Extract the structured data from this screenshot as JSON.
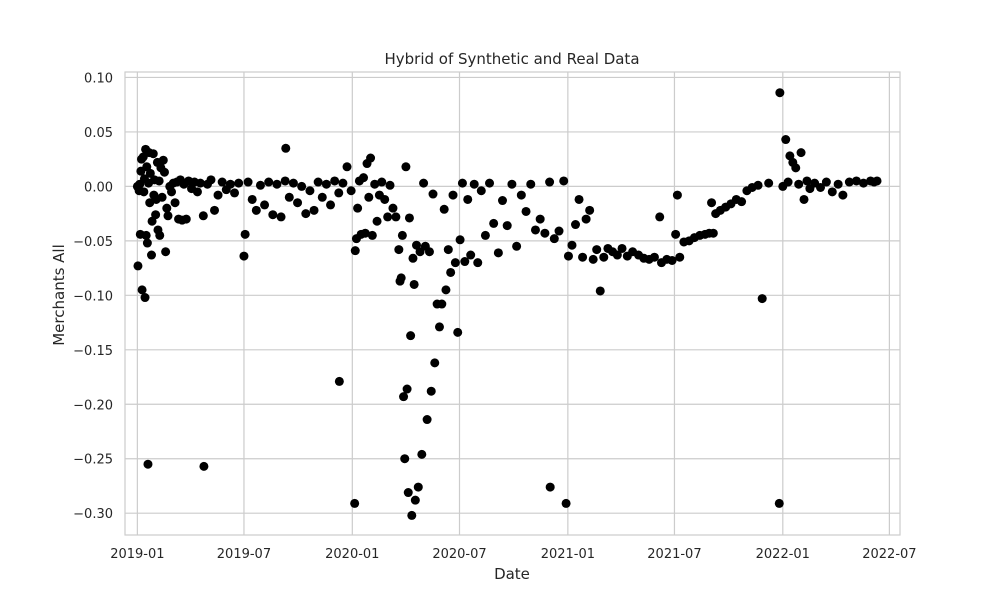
{
  "chart_data": {
    "type": "scatter",
    "title": "Hybrid of Synthetic and Real Data",
    "xlabel": "Date",
    "ylabel": "Merchants All",
    "x_ticks": [
      "2019-01",
      "2019-07",
      "2020-01",
      "2020-07",
      "2021-01",
      "2021-07",
      "2022-01",
      "2022-07"
    ],
    "y_ticks": [
      "0.10",
      "0.05",
      "0.00",
      "−0.05",
      "−0.10",
      "−0.15",
      "−0.20",
      "−0.25",
      "−0.30"
    ],
    "xlim": [
      "2018-12-11",
      "2022-07-19"
    ],
    "ylim": [
      -0.32,
      0.105
    ],
    "grid": true,
    "marker_color": "#000000",
    "grid_color": "#cccccc",
    "series": [
      {
        "points": [
          [
            "2019-01-01",
            0.0
          ],
          [
            "2019-01-02",
            -0.073
          ],
          [
            "2019-01-04",
            -0.004
          ],
          [
            "2019-01-05",
            0.002
          ],
          [
            "2019-01-06",
            -0.044
          ],
          [
            "2019-01-07",
            0.014
          ],
          [
            "2019-01-08",
            0.025
          ],
          [
            "2019-01-09",
            -0.095
          ],
          [
            "2019-01-11",
            0.027
          ],
          [
            "2019-01-12",
            -0.005
          ],
          [
            "2019-01-13",
            0.007
          ],
          [
            "2019-01-14",
            -0.102
          ],
          [
            "2019-01-15",
            0.034
          ],
          [
            "2019-01-16",
            -0.045
          ],
          [
            "2019-01-17",
            0.018
          ],
          [
            "2019-01-18",
            -0.052
          ],
          [
            "2019-01-19",
            -0.255
          ],
          [
            "2019-01-20",
            0.003
          ],
          [
            "2019-01-21",
            0.031
          ],
          [
            "2019-01-22",
            -0.015
          ],
          [
            "2019-01-23",
            0.012
          ],
          [
            "2019-01-25",
            -0.063
          ],
          [
            "2019-01-26",
            -0.032
          ],
          [
            "2019-01-28",
            0.03
          ],
          [
            "2019-01-29",
            -0.008
          ],
          [
            "2019-01-30",
            0.006
          ],
          [
            "2019-02-01",
            -0.026
          ],
          [
            "2019-02-02",
            -0.012
          ],
          [
            "2019-02-04",
            0.022
          ],
          [
            "2019-02-05",
            -0.04
          ],
          [
            "2019-02-07",
            0.005
          ],
          [
            "2019-02-08",
            -0.045
          ],
          [
            "2019-02-10",
            0.017
          ],
          [
            "2019-02-12",
            -0.01
          ],
          [
            "2019-02-14",
            0.024
          ],
          [
            "2019-02-16",
            0.013
          ],
          [
            "2019-02-18",
            -0.06
          ],
          [
            "2019-02-20",
            -0.02
          ],
          [
            "2019-02-22",
            -0.027
          ],
          [
            "2019-02-25",
            0.0
          ],
          [
            "2019-02-28",
            -0.005
          ],
          [
            "2019-03-03",
            0.003
          ],
          [
            "2019-03-06",
            -0.015
          ],
          [
            "2019-03-09",
            0.004
          ],
          [
            "2019-03-12",
            -0.03
          ],
          [
            "2019-03-15",
            0.006
          ],
          [
            "2019-03-18",
            -0.031
          ],
          [
            "2019-03-21",
            0.002
          ],
          [
            "2019-03-25",
            -0.03
          ],
          [
            "2019-03-29",
            0.005
          ],
          [
            "2019-04-03",
            -0.002
          ],
          [
            "2019-04-08",
            0.004
          ],
          [
            "2019-04-13",
            -0.005
          ],
          [
            "2019-04-18",
            0.003
          ],
          [
            "2019-04-23",
            -0.027
          ],
          [
            "2019-04-24",
            -0.257
          ],
          [
            "2019-04-30",
            0.002
          ],
          [
            "2019-05-06",
            0.006
          ],
          [
            "2019-05-12",
            -0.022
          ],
          [
            "2019-05-18",
            -0.008
          ],
          [
            "2019-05-25",
            0.004
          ],
          [
            "2019-06-01",
            -0.003
          ],
          [
            "2019-06-08",
            0.002
          ],
          [
            "2019-06-15",
            -0.006
          ],
          [
            "2019-06-22",
            0.003
          ],
          [
            "2019-07-01",
            -0.064
          ],
          [
            "2019-07-03",
            -0.044
          ],
          [
            "2019-07-08",
            0.004
          ],
          [
            "2019-07-15",
            -0.012
          ],
          [
            "2019-07-22",
            -0.022
          ],
          [
            "2019-07-29",
            0.001
          ],
          [
            "2019-08-05",
            -0.017
          ],
          [
            "2019-08-12",
            0.004
          ],
          [
            "2019-08-19",
            -0.026
          ],
          [
            "2019-08-26",
            0.002
          ],
          [
            "2019-09-02",
            -0.028
          ],
          [
            "2019-09-09",
            0.005
          ],
          [
            "2019-09-10",
            0.035
          ],
          [
            "2019-09-16",
            -0.01
          ],
          [
            "2019-09-23",
            0.003
          ],
          [
            "2019-09-30",
            -0.015
          ],
          [
            "2019-10-07",
            0.0
          ],
          [
            "2019-10-14",
            -0.025
          ],
          [
            "2019-10-21",
            -0.004
          ],
          [
            "2019-10-28",
            -0.022
          ],
          [
            "2019-11-04",
            0.004
          ],
          [
            "2019-11-11",
            -0.01
          ],
          [
            "2019-11-18",
            0.002
          ],
          [
            "2019-11-25",
            -0.017
          ],
          [
            "2019-12-02",
            0.005
          ],
          [
            "2019-12-09",
            -0.006
          ],
          [
            "2019-12-10",
            -0.179
          ],
          [
            "2019-12-16",
            0.003
          ],
          [
            "2019-12-23",
            0.018
          ],
          [
            "2019-12-30",
            -0.004
          ],
          [
            "2020-01-05",
            -0.291
          ],
          [
            "2020-01-06",
            -0.059
          ],
          [
            "2020-01-08",
            -0.048
          ],
          [
            "2020-01-10",
            -0.02
          ],
          [
            "2020-01-13",
            0.005
          ],
          [
            "2020-01-16",
            -0.044
          ],
          [
            "2020-01-20",
            0.008
          ],
          [
            "2020-01-23",
            -0.043
          ],
          [
            "2020-01-26",
            0.021
          ],
          [
            "2020-01-29",
            -0.01
          ],
          [
            "2020-02-01",
            0.026
          ],
          [
            "2020-02-04",
            -0.045
          ],
          [
            "2020-02-08",
            0.002
          ],
          [
            "2020-02-12",
            -0.032
          ],
          [
            "2020-02-16",
            -0.008
          ],
          [
            "2020-02-20",
            0.004
          ],
          [
            "2020-02-25",
            -0.012
          ],
          [
            "2020-03-01",
            -0.028
          ],
          [
            "2020-03-05",
            0.001
          ],
          [
            "2020-03-10",
            -0.02
          ],
          [
            "2020-03-15",
            -0.028
          ],
          [
            "2020-03-20",
            -0.058
          ],
          [
            "2020-03-22",
            -0.087
          ],
          [
            "2020-03-24",
            -0.084
          ],
          [
            "2020-03-26",
            -0.045
          ],
          [
            "2020-03-28",
            -0.193
          ],
          [
            "2020-03-30",
            -0.25
          ],
          [
            "2020-04-01",
            0.018
          ],
          [
            "2020-04-03",
            -0.186
          ],
          [
            "2020-04-05",
            -0.281
          ],
          [
            "2020-04-07",
            -0.029
          ],
          [
            "2020-04-09",
            -0.137
          ],
          [
            "2020-04-11",
            -0.302
          ],
          [
            "2020-04-13",
            -0.066
          ],
          [
            "2020-04-15",
            -0.09
          ],
          [
            "2020-04-17",
            -0.288
          ],
          [
            "2020-04-19",
            -0.054
          ],
          [
            "2020-04-22",
            -0.276
          ],
          [
            "2020-04-25",
            -0.06
          ],
          [
            "2020-04-28",
            -0.246
          ],
          [
            "2020-05-01",
            0.003
          ],
          [
            "2020-05-04",
            -0.055
          ],
          [
            "2020-05-07",
            -0.214
          ],
          [
            "2020-05-11",
            -0.06
          ],
          [
            "2020-05-14",
            -0.188
          ],
          [
            "2020-05-17",
            -0.007
          ],
          [
            "2020-05-20",
            -0.162
          ],
          [
            "2020-05-24",
            -0.108
          ],
          [
            "2020-05-28",
            -0.129
          ],
          [
            "2020-06-01",
            -0.108
          ],
          [
            "2020-06-05",
            -0.021
          ],
          [
            "2020-06-08",
            -0.095
          ],
          [
            "2020-06-12",
            -0.058
          ],
          [
            "2020-06-16",
            -0.079
          ],
          [
            "2020-06-20",
            -0.008
          ],
          [
            "2020-06-24",
            -0.07
          ],
          [
            "2020-06-28",
            -0.134
          ],
          [
            "2020-07-02",
            -0.049
          ],
          [
            "2020-07-06",
            0.003
          ],
          [
            "2020-07-10",
            -0.069
          ],
          [
            "2020-07-15",
            -0.012
          ],
          [
            "2020-07-20",
            -0.063
          ],
          [
            "2020-07-26",
            0.002
          ],
          [
            "2020-08-01",
            -0.07
          ],
          [
            "2020-08-07",
            -0.004
          ],
          [
            "2020-08-14",
            -0.045
          ],
          [
            "2020-08-21",
            0.003
          ],
          [
            "2020-08-28",
            -0.034
          ],
          [
            "2020-09-05",
            -0.061
          ],
          [
            "2020-09-12",
            -0.013
          ],
          [
            "2020-09-20",
            -0.036
          ],
          [
            "2020-09-28",
            0.002
          ],
          [
            "2020-10-06",
            -0.055
          ],
          [
            "2020-10-14",
            -0.008
          ],
          [
            "2020-10-22",
            -0.023
          ],
          [
            "2020-10-30",
            0.002
          ],
          [
            "2020-11-07",
            -0.04
          ],
          [
            "2020-11-15",
            -0.03
          ],
          [
            "2020-11-23",
            -0.043
          ],
          [
            "2020-12-01",
            0.004
          ],
          [
            "2020-12-02",
            -0.276
          ],
          [
            "2020-12-09",
            -0.048
          ],
          [
            "2020-12-17",
            -0.041
          ],
          [
            "2020-12-25",
            0.005
          ],
          [
            "2020-12-29",
            -0.291
          ],
          [
            "2021-01-02",
            -0.064
          ],
          [
            "2021-01-08",
            -0.054
          ],
          [
            "2021-01-14",
            -0.035
          ],
          [
            "2021-01-20",
            -0.012
          ],
          [
            "2021-01-26",
            -0.065
          ],
          [
            "2021-02-01",
            -0.03
          ],
          [
            "2021-02-07",
            -0.022
          ],
          [
            "2021-02-13",
            -0.067
          ],
          [
            "2021-02-19",
            -0.058
          ],
          [
            "2021-02-25",
            -0.096
          ],
          [
            "2021-03-03",
            -0.065
          ],
          [
            "2021-03-10",
            -0.057
          ],
          [
            "2021-03-18",
            -0.06
          ],
          [
            "2021-03-26",
            -0.063
          ],
          [
            "2021-04-03",
            -0.057
          ],
          [
            "2021-04-12",
            -0.064
          ],
          [
            "2021-04-21",
            -0.06
          ],
          [
            "2021-05-01",
            -0.063
          ],
          [
            "2021-05-10",
            -0.066
          ],
          [
            "2021-05-19",
            -0.067
          ],
          [
            "2021-05-28",
            -0.065
          ],
          [
            "2021-06-06",
            -0.028
          ],
          [
            "2021-06-09",
            -0.07
          ],
          [
            "2021-06-18",
            -0.067
          ],
          [
            "2021-06-27",
            -0.068
          ],
          [
            "2021-07-03",
            -0.044
          ],
          [
            "2021-07-06",
            -0.008
          ],
          [
            "2021-07-10",
            -0.065
          ],
          [
            "2021-07-17",
            -0.051
          ],
          [
            "2021-07-26",
            -0.05
          ],
          [
            "2021-08-04",
            -0.047
          ],
          [
            "2021-08-13",
            -0.045
          ],
          [
            "2021-08-22",
            -0.044
          ],
          [
            "2021-08-29",
            -0.043
          ],
          [
            "2021-09-02",
            -0.015
          ],
          [
            "2021-09-05",
            -0.043
          ],
          [
            "2021-09-09",
            -0.025
          ],
          [
            "2021-09-17",
            -0.022
          ],
          [
            "2021-09-26",
            -0.019
          ],
          [
            "2021-10-05",
            -0.016
          ],
          [
            "2021-10-14",
            -0.012
          ],
          [
            "2021-10-23",
            -0.014
          ],
          [
            "2021-11-01",
            -0.004
          ],
          [
            "2021-11-10",
            -0.001
          ],
          [
            "2021-11-20",
            0.001
          ],
          [
            "2021-11-27",
            -0.103
          ],
          [
            "2021-12-08",
            0.003
          ],
          [
            "2021-12-26",
            -0.291
          ],
          [
            "2021-12-27",
            0.086
          ],
          [
            "2022-01-01",
            0.0
          ],
          [
            "2022-01-06",
            0.043
          ],
          [
            "2022-01-10",
            0.004
          ],
          [
            "2022-01-13",
            0.028
          ],
          [
            "2022-01-18",
            0.022
          ],
          [
            "2022-01-23",
            0.017
          ],
          [
            "2022-01-28",
            0.002
          ],
          [
            "2022-02-01",
            0.031
          ],
          [
            "2022-02-06",
            -0.012
          ],
          [
            "2022-02-11",
            0.005
          ],
          [
            "2022-02-16",
            -0.002
          ],
          [
            "2022-02-24",
            0.003
          ],
          [
            "2022-03-06",
            -0.001
          ],
          [
            "2022-03-16",
            0.004
          ],
          [
            "2022-03-26",
            -0.005
          ],
          [
            "2022-04-05",
            0.002
          ],
          [
            "2022-04-13",
            -0.008
          ],
          [
            "2022-04-24",
            0.004
          ],
          [
            "2022-05-06",
            0.005
          ],
          [
            "2022-05-18",
            0.003
          ],
          [
            "2022-05-30",
            0.005
          ],
          [
            "2022-06-05",
            0.004
          ],
          [
            "2022-06-10",
            0.005
          ]
        ]
      }
    ]
  }
}
